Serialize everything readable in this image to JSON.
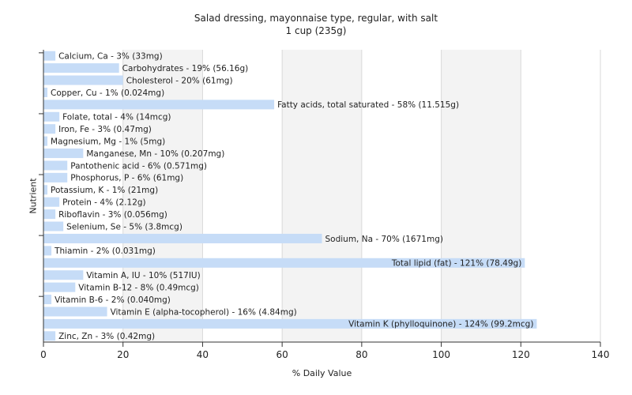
{
  "title": "Salad dressing, mayonnaise type, regular, with salt",
  "subtitle": "1 cup (235g)",
  "colors": {
    "bar": "#c6dcf7",
    "plot_bg_light": "#ffffff",
    "plot_bg_dark": "#f3f3f3",
    "gridline": "#d9d9d9",
    "axis": "#333333",
    "text": "#222222"
  },
  "chart_data": {
    "type": "bar",
    "orientation": "horizontal",
    "xlabel": "% Daily Value",
    "ylabel": "Nutrient",
    "xlim": [
      0,
      140
    ],
    "xticks": [
      0,
      20,
      40,
      60,
      80,
      100,
      120,
      140
    ],
    "grid": true,
    "categories": [
      "Calcium, Ca",
      "Carbohydrates",
      "Cholesterol",
      "Copper, Cu",
      "Fatty acids, total saturated",
      "Folate, total",
      "Iron, Fe",
      "Magnesium, Mg",
      "Manganese, Mn",
      "Pantothenic acid",
      "Phosphorus, P",
      "Potassium, K",
      "Protein",
      "Riboflavin",
      "Selenium, Se",
      "Sodium, Na",
      "Thiamin",
      "Total lipid (fat)",
      "Vitamin A, IU",
      "Vitamin B-12",
      "Vitamin B-6",
      "Vitamin E (alpha-tocopherol)",
      "Vitamin K (phylloquinone)",
      "Zinc, Zn"
    ],
    "values": [
      3,
      19,
      20,
      1,
      58,
      4,
      3,
      1,
      10,
      6,
      6,
      1,
      4,
      3,
      5,
      70,
      2,
      121,
      10,
      8,
      2,
      16,
      124,
      3
    ],
    "labels": [
      "Calcium, Ca - 3% (33mg)",
      "Carbohydrates - 19% (56.16g)",
      "Cholesterol - 20% (61mg)",
      "Copper, Cu - 1% (0.024mg)",
      "Fatty acids, total saturated - 58% (11.515g)",
      "Folate, total - 4% (14mcg)",
      "Iron, Fe - 3% (0.47mg)",
      "Magnesium, Mg - 1% (5mg)",
      "Manganese, Mn - 10% (0.207mg)",
      "Pantothenic acid - 6% (0.571mg)",
      "Phosphorus, P - 6% (61mg)",
      "Potassium, K - 1% (21mg)",
      "Protein - 4% (2.12g)",
      "Riboflavin - 3% (0.056mg)",
      "Selenium, Se - 5% (3.8mcg)",
      "Sodium, Na - 70% (1671mg)",
      "Thiamin - 2% (0.031mg)",
      "Total lipid (fat) - 121% (78.49g)",
      "Vitamin A, IU - 10% (517IU)",
      "Vitamin B-12 - 8% (0.49mcg)",
      "Vitamin B-6 - 2% (0.040mg)",
      "Vitamin E (alpha-tocopherol) - 16% (4.84mg)",
      "Vitamin K (phylloquinone) - 124% (99.2mcg)",
      "Zinc, Zn - 3% (0.42mg)"
    ]
  }
}
